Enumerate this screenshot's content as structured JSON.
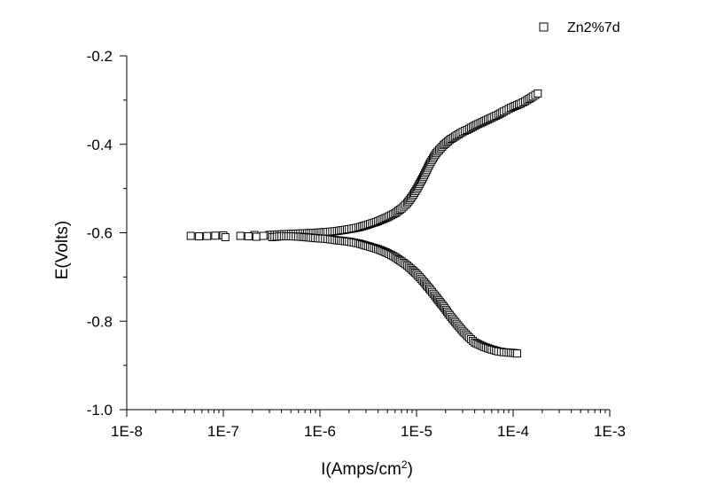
{
  "chart_data": {
    "type": "scatter",
    "title": "",
    "xlabel": {
      "base": "I(Amps/cm",
      "sup": "2",
      "tail": ")"
    },
    "ylabel": "E(Volts)",
    "xscale": "log",
    "xlim": [
      1e-08,
      0.001
    ],
    "ylim": [
      -1.0,
      -0.2
    ],
    "x_ticks": [
      {
        "value": 1e-08,
        "label": "1E-8"
      },
      {
        "value": 1e-07,
        "label": "1E-7"
      },
      {
        "value": 1e-06,
        "label": "1E-6"
      },
      {
        "value": 1e-05,
        "label": "1E-5"
      },
      {
        "value": 0.0001,
        "label": "1E-4"
      },
      {
        "value": 0.001,
        "label": "1E-3"
      }
    ],
    "y_ticks": [
      {
        "value": -0.2,
        "label": "-0.2"
      },
      {
        "value": -0.4,
        "label": "-0.4"
      },
      {
        "value": -0.6,
        "label": "-0.6"
      },
      {
        "value": -0.8,
        "label": "-0.8"
      },
      {
        "value": -1.0,
        "label": "-1.0"
      }
    ],
    "grid": false,
    "legend_position": "top-right",
    "marker": "open-square",
    "series": [
      {
        "name": "Zn2%7d",
        "points": [
          [
            4.6e-08,
            -0.607
          ],
          [
            5.6e-08,
            -0.608
          ],
          [
            1e-07,
            -0.606
          ],
          [
            1.05e-07,
            -0.61
          ],
          [
            1.5e-07,
            -0.607
          ],
          [
            2.1e-07,
            -0.605
          ],
          [
            2.2e-07,
            -0.609
          ],
          [
            2.6e-07,
            -0.607
          ],
          [
            3e-07,
            -0.605
          ],
          [
            3.2e-07,
            -0.61
          ],
          [
            3.6e-07,
            -0.604
          ],
          [
            4e-07,
            -0.608
          ],
          [
            4.5e-07,
            -0.603
          ],
          [
            5e-07,
            -0.608
          ],
          [
            5.6e-07,
            -0.602
          ],
          [
            6.3e-07,
            -0.609
          ],
          [
            7e-07,
            -0.601
          ],
          [
            8e-07,
            -0.611
          ],
          [
            9e-07,
            -0.6
          ],
          [
            1e-06,
            -0.613
          ],
          [
            1.2e-06,
            -0.598
          ],
          [
            1.2e-06,
            -0.614
          ],
          [
            1.5e-06,
            -0.596
          ],
          [
            1.5e-06,
            -0.617
          ],
          [
            2e-06,
            -0.592
          ],
          [
            2e-06,
            -0.62
          ],
          [
            2.5e-06,
            -0.588
          ],
          [
            2.5e-06,
            -0.624
          ],
          [
            3e-06,
            -0.583
          ],
          [
            3e-06,
            -0.629
          ],
          [
            4e-06,
            -0.574
          ],
          [
            4e-06,
            -0.637
          ],
          [
            5e-06,
            -0.565
          ],
          [
            5e-06,
            -0.646
          ],
          [
            6e-06,
            -0.556
          ],
          [
            6e-06,
            -0.655
          ],
          [
            7e-06,
            -0.545
          ],
          [
            7e-06,
            -0.665
          ],
          [
            8e-06,
            -0.533
          ],
          [
            8e-06,
            -0.674
          ],
          [
            9e-06,
            -0.518
          ],
          [
            9e-06,
            -0.684
          ],
          [
            1e-05,
            -0.502
          ],
          [
            1e-05,
            -0.693
          ],
          [
            1.2e-05,
            -0.47
          ],
          [
            1.2e-05,
            -0.712
          ],
          [
            1.4e-05,
            -0.44
          ],
          [
            1.4e-05,
            -0.73
          ],
          [
            1.6e-05,
            -0.42
          ],
          [
            1.6e-05,
            -0.746
          ],
          [
            1.9e-05,
            -0.402
          ],
          [
            1.9e-05,
            -0.767
          ],
          [
            2.2e-05,
            -0.39
          ],
          [
            2.2e-05,
            -0.786
          ],
          [
            2.6e-05,
            -0.38
          ],
          [
            2.6e-05,
            -0.806
          ],
          [
            3e-05,
            -0.372
          ],
          [
            3e-05,
            -0.822
          ],
          [
            3.5e-05,
            -0.365
          ],
          [
            3.5e-05,
            -0.837
          ],
          [
            4e-05,
            -0.358
          ],
          [
            4e-05,
            -0.848
          ],
          [
            5e-05,
            -0.348
          ],
          [
            5e-05,
            -0.858
          ],
          [
            6e-05,
            -0.34
          ],
          [
            6e-05,
            -0.864
          ],
          [
            7e-05,
            -0.333
          ],
          [
            7e-05,
            -0.868
          ],
          [
            8e-05,
            -0.326
          ],
          [
            8e-05,
            -0.87
          ],
          [
            9e-05,
            -0.32
          ],
          [
            9e-05,
            -0.871
          ],
          [
            0.0001,
            -0.315
          ],
          [
            0.000105,
            -0.872
          ],
          [
            0.00011,
            -0.873
          ],
          [
            0.00012,
            -0.308
          ],
          [
            0.00014,
            -0.3
          ],
          [
            0.00016,
            -0.292
          ],
          [
            0.00018,
            -0.285
          ]
        ]
      }
    ]
  }
}
